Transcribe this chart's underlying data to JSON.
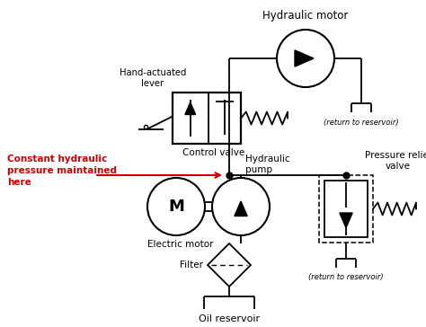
{
  "bg_color": "#ffffff",
  "line_color": "#000000",
  "red_color": "#cc0000",
  "labels": {
    "hydraulic_motor": "Hydraulic motor",
    "return_reservoir_top": "(return to reservoir)",
    "hand_actuated": "Hand-actuated\nlever",
    "control_valve": "Control valve",
    "constant_pressure": "Constant hydraulic\npressure maintained\nhere",
    "hydraulic_pump": "Hydraulic\npump",
    "electric_motor": "Electric motor",
    "pressure_relief": "Pressure relief\nvalve",
    "return_reservoir_bot": "(return to reservoir)",
    "filter": "Filter",
    "oil_reservoir": "Oil reservoir"
  }
}
